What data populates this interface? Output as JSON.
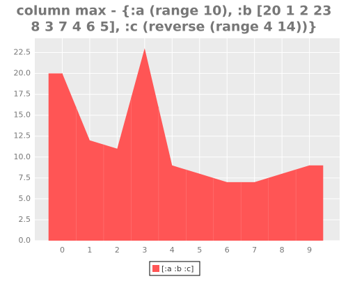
{
  "chart_data": {
    "type": "area",
    "title": [
      "column max - {:a (range 10), :b [20 1 2 23",
      "8 3 7 4 6 5], :c (reverse (range 4 14))}"
    ],
    "x": [
      0,
      1,
      2,
      3,
      4,
      5,
      6,
      7,
      8,
      9
    ],
    "series": [
      {
        "name": "[:a :b :c]",
        "color": "#ff5555",
        "values": [
          20,
          12,
          11,
          23,
          9,
          8,
          7,
          7,
          8,
          9
        ]
      }
    ],
    "xlim": [
      -1,
      10.1
    ],
    "xticks": [
      0,
      1,
      2,
      3,
      4,
      5,
      6,
      7,
      8,
      9
    ],
    "ylim": [
      0,
      24.2
    ],
    "yticks": [
      {
        "value": 0,
        "label": "0.0"
      },
      2.5,
      {
        "value": 5,
        "label": "5.0"
      },
      7.5,
      {
        "value": 10,
        "label": "10.0"
      },
      12.5,
      {
        "value": 15,
        "label": "15.0"
      },
      17.5,
      {
        "value": 20,
        "label": "20.0"
      },
      22.5
    ],
    "grid": true,
    "background": "#ebebeb",
    "legend": "bottom"
  }
}
